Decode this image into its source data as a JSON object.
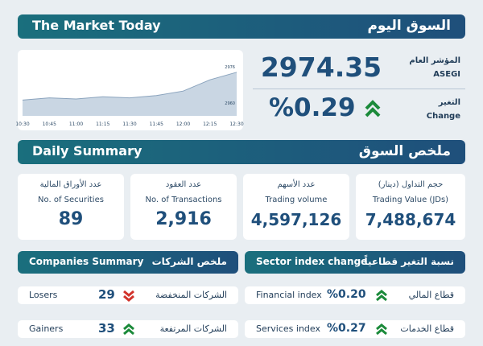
{
  "header": {
    "title_en": "The Market Today",
    "title_ar": "السوق اليوم"
  },
  "index": {
    "label_ar": "المؤشر العام",
    "label_en": "ASEGI",
    "value": "2974.35",
    "change_label_ar": "التغير",
    "change_label_en": "Change",
    "change_value": "%0.29"
  },
  "chart_data": {
    "type": "area",
    "x": [
      "10:30",
      "10:45",
      "11:00",
      "11:15",
      "11:30",
      "11:45",
      "12:00",
      "12:15",
      "12:30"
    ],
    "y_ticks": [
      "2976",
      "2960"
    ],
    "values": [
      2962,
      2963,
      2962.5,
      2963.5,
      2963,
      2964,
      2966,
      2971,
      2974.35
    ],
    "ylim": [
      2955,
      2980
    ]
  },
  "daily": {
    "title_en": "Daily Summary",
    "title_ar": "ملخص السوق"
  },
  "stats": [
    {
      "label_ar": "عدد الأوراق المالية",
      "label_en": "No. of Securities",
      "value": "89"
    },
    {
      "label_ar": "عدد العقود",
      "label_en": "No. of Transactions",
      "value": "2,916"
    },
    {
      "label_ar": "عدد الأسهم",
      "label_en": "Trading volume",
      "value": "4,597,126"
    },
    {
      "label_ar": "حجم التداول (دينار)",
      "label_en": "Trading Value (JDs)",
      "value": "7,488,674"
    }
  ],
  "companies": {
    "title_en": "Companies Summary",
    "title_ar": "ملخص الشركات",
    "rows": [
      {
        "label_en": "Losers",
        "value": "29",
        "label_ar": "الشركات المنخفضة"
      },
      {
        "label_en": "Gainers",
        "value": "33",
        "label_ar": "الشركات المرتفعة"
      }
    ]
  },
  "sectors": {
    "title_en": "Sector index change",
    "title_ar": "نسبة التغير قطاعياً",
    "rows": [
      {
        "label_en": "Financial index",
        "value": "%0.20",
        "label_ar": "قطاع المالي"
      },
      {
        "label_en": "Services index",
        "value": "%0.27",
        "label_ar": "قطاع الخدمات"
      }
    ]
  },
  "colors": {
    "up": "#1b8a3a",
    "down": "#d2332b",
    "accent": "#1f4f7b"
  }
}
